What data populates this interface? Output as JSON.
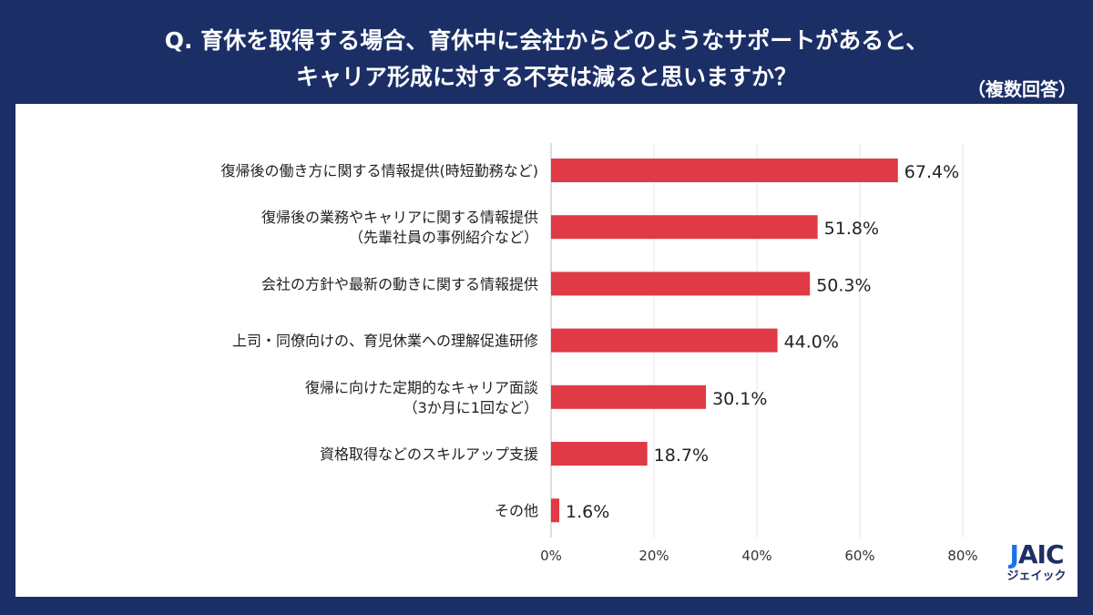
{
  "header": {
    "title_line1": "Q. 育休を取得する場合、育休中に会社からどのようなサポートがあると、",
    "title_line2": "キャリア形成に対する不安は減ると思いますか？",
    "note": "（複数回答）"
  },
  "logo": {
    "text": "JAIC",
    "sub": "ジェイック"
  },
  "chart_data": {
    "type": "bar",
    "orientation": "horizontal",
    "categories": [
      [
        "復帰後の働き方に関する情報提供(時短勤務など)"
      ],
      [
        "復帰後の業務やキャリアに関する情報提供",
        "（先輩社員の事例紹介など）"
      ],
      [
        "会社の方針や最新の動きに関する情報提供"
      ],
      [
        "上司・同僚向けの、育児休業への理解促進研修"
      ],
      [
        "復帰に向けた定期的なキャリア面談",
        "（3か月に1回など）"
      ],
      [
        "資格取得などのスキルアップ支援"
      ],
      [
        "その他"
      ]
    ],
    "values": [
      67.4,
      51.8,
      50.3,
      44.0,
      30.1,
      18.7,
      1.6
    ],
    "value_labels": [
      "67.4%",
      "51.8%",
      "50.3%",
      "44.0%",
      "30.1%",
      "18.7%",
      "1.6%"
    ],
    "xticks": [
      "0%",
      "20%",
      "40%",
      "60%",
      "80%"
    ],
    "xlim": [
      0,
      80
    ],
    "bar_color": "#e03a46",
    "grid": true
  }
}
